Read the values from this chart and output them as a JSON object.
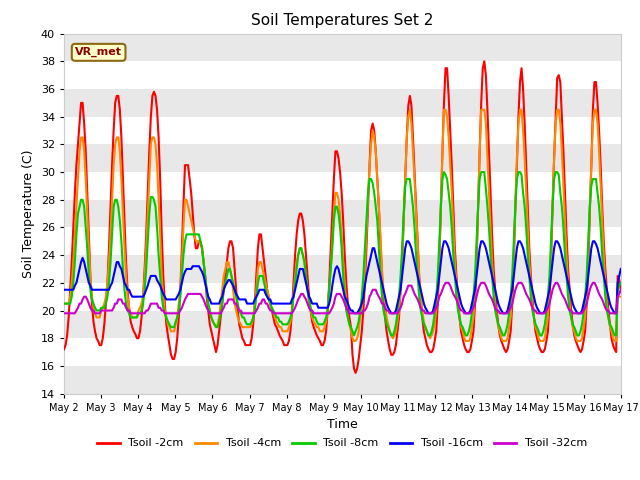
{
  "title": "Soil Temperatures Set 2",
  "xlabel": "Time",
  "ylabel": "Soil Temperature (C)",
  "ylim": [
    14,
    40
  ],
  "yticks": [
    14,
    16,
    18,
    20,
    22,
    24,
    26,
    28,
    30,
    32,
    34,
    36,
    38,
    40
  ],
  "annotation": "VR_met",
  "plot_bg_color": "#ffffff",
  "stripe_color": "#e8e8e8",
  "series_colors": [
    "#ff0000",
    "#ff8800",
    "#00cc00",
    "#0000ff",
    "#cc00cc"
  ],
  "series_labels": [
    "Tsoil -2cm",
    "Tsoil -4cm",
    "Tsoil -8cm",
    "Tsoil -16cm",
    "Tsoil -32cm"
  ],
  "xtick_labels": [
    "May 2",
    "May 3",
    "May 4",
    "May 5",
    "May 6",
    "May 7",
    "May 8",
    "May 9",
    "May 10",
    "May 11",
    "May 12",
    "May 13",
    "May 14",
    "May 15",
    "May 16",
    "May 17"
  ],
  "tsoil_2cm": [
    17.2,
    17.5,
    18.2,
    19.5,
    21.5,
    23.5,
    26.0,
    28.5,
    30.5,
    32.0,
    33.5,
    35.0,
    35.0,
    33.5,
    31.5,
    28.5,
    25.5,
    22.5,
    20.5,
    19.2,
    18.5,
    18.0,
    17.8,
    17.5,
    17.5,
    18.0,
    19.0,
    20.5,
    22.0,
    24.5,
    27.5,
    30.5,
    33.0,
    35.0,
    35.5,
    35.5,
    34.5,
    32.5,
    29.5,
    26.5,
    23.5,
    21.5,
    20.0,
    19.2,
    18.8,
    18.5,
    18.3,
    18.0,
    18.0,
    18.5,
    19.5,
    21.0,
    23.0,
    25.5,
    28.5,
    31.5,
    34.0,
    35.5,
    35.8,
    35.5,
    34.5,
    32.5,
    29.5,
    25.5,
    22.5,
    20.5,
    19.0,
    18.2,
    17.5,
    16.8,
    16.5,
    16.5,
    17.0,
    18.0,
    19.5,
    21.5,
    24.5,
    27.5,
    30.5,
    30.5,
    30.5,
    29.5,
    28.5,
    27.0,
    25.5,
    24.5,
    24.5,
    25.0,
    25.0,
    24.5,
    23.5,
    22.5,
    21.0,
    20.0,
    19.0,
    18.5,
    18.0,
    17.5,
    17.0,
    17.5,
    18.5,
    19.5,
    20.5,
    21.5,
    22.5,
    23.5,
    24.5,
    25.0,
    25.0,
    24.5,
    23.0,
    21.5,
    20.0,
    19.0,
    18.5,
    18.0,
    17.8,
    17.5,
    17.5,
    17.5,
    17.5,
    18.0,
    19.0,
    20.5,
    22.5,
    24.5,
    25.5,
    25.5,
    24.5,
    23.5,
    22.5,
    21.5,
    21.0,
    20.5,
    20.0,
    19.5,
    19.0,
    18.8,
    18.5,
    18.2,
    18.0,
    17.8,
    17.5,
    17.5,
    17.5,
    17.8,
    18.5,
    20.0,
    22.0,
    24.0,
    25.5,
    26.5,
    27.0,
    27.0,
    26.5,
    25.5,
    24.0,
    22.5,
    21.0,
    20.0,
    19.2,
    18.8,
    18.5,
    18.2,
    18.0,
    17.8,
    17.5,
    17.5,
    17.8,
    18.5,
    20.0,
    22.0,
    24.5,
    27.0,
    29.5,
    31.5,
    31.5,
    31.0,
    30.0,
    28.5,
    26.5,
    24.0,
    22.0,
    20.5,
    19.5,
    18.8,
    16.8,
    15.8,
    15.5,
    15.8,
    16.5,
    17.5,
    18.5,
    20.0,
    22.0,
    24.5,
    27.5,
    30.5,
    33.0,
    33.5,
    33.0,
    31.5,
    29.5,
    27.5,
    25.0,
    22.5,
    21.0,
    19.5,
    18.5,
    17.8,
    17.2,
    16.8,
    16.8,
    17.0,
    17.5,
    18.5,
    19.5,
    21.5,
    23.5,
    26.5,
    29.5,
    32.5,
    34.8,
    35.5,
    34.8,
    32.5,
    30.0,
    27.5,
    25.0,
    22.5,
    21.0,
    19.5,
    18.5,
    18.0,
    17.5,
    17.2,
    17.0,
    17.0,
    17.2,
    17.8,
    18.5,
    20.5,
    23.5,
    27.5,
    31.5,
    35.0,
    37.5,
    37.5,
    35.5,
    33.0,
    30.5,
    27.5,
    24.5,
    22.5,
    21.0,
    19.5,
    18.5,
    18.0,
    17.5,
    17.2,
    17.0,
    17.0,
    17.2,
    17.8,
    18.5,
    20.5,
    23.5,
    27.5,
    31.5,
    35.0,
    37.5,
    38.0,
    37.0,
    34.5,
    31.5,
    28.5,
    25.5,
    23.0,
    21.5,
    20.0,
    19.0,
    18.2,
    17.8,
    17.5,
    17.2,
    17.0,
    17.2,
    17.8,
    18.5,
    20.5,
    23.5,
    27.5,
    30.5,
    34.0,
    36.5,
    37.5,
    36.0,
    33.5,
    30.5,
    27.5,
    24.5,
    22.5,
    21.0,
    19.5,
    18.5,
    18.0,
    17.5,
    17.2,
    17.0,
    17.0,
    17.2,
    17.8,
    18.5,
    20.5,
    23.5,
    27.5,
    31.0,
    34.0,
    36.8,
    37.0,
    36.5,
    34.0,
    31.5,
    28.5,
    25.5,
    23.0,
    21.5,
    20.0,
    19.0,
    18.2,
    17.8,
    17.5,
    17.2,
    17.0,
    17.2,
    17.8,
    18.5,
    20.5,
    23.0,
    27.0,
    30.5,
    34.5,
    36.5,
    36.5,
    35.0,
    33.0,
    30.5,
    27.5,
    25.0,
    23.0,
    21.5,
    20.0,
    19.0,
    18.0,
    17.5,
    17.2,
    17.0,
    22.5,
    22.2,
    21.5
  ],
  "tsoil_4cm": [
    20.5,
    20.5,
    20.5,
    20.5,
    21.0,
    22.0,
    23.5,
    25.5,
    27.5,
    29.5,
    31.5,
    32.5,
    32.5,
    31.5,
    29.5,
    27.0,
    24.5,
    22.5,
    21.0,
    20.2,
    19.8,
    19.5,
    19.5,
    19.5,
    20.0,
    20.2,
    20.5,
    21.0,
    22.0,
    23.5,
    25.5,
    28.0,
    30.5,
    32.0,
    32.5,
    32.5,
    31.5,
    29.5,
    27.0,
    24.5,
    22.5,
    21.0,
    20.2,
    19.8,
    19.5,
    19.5,
    19.5,
    19.5,
    20.0,
    20.2,
    20.5,
    21.0,
    22.5,
    24.5,
    27.0,
    29.5,
    32.0,
    32.5,
    32.5,
    32.0,
    30.5,
    28.0,
    25.5,
    22.5,
    21.0,
    20.0,
    19.5,
    19.0,
    18.8,
    18.5,
    18.5,
    18.5,
    19.0,
    19.5,
    20.5,
    21.5,
    23.5,
    26.0,
    28.0,
    28.0,
    27.5,
    27.0,
    26.5,
    26.0,
    25.5,
    25.0,
    25.0,
    25.0,
    24.8,
    24.5,
    23.5,
    22.5,
    21.5,
    20.5,
    20.0,
    19.5,
    19.2,
    19.0,
    18.8,
    19.0,
    19.5,
    20.5,
    21.5,
    22.5,
    23.0,
    23.5,
    23.5,
    23.0,
    22.5,
    21.5,
    20.5,
    20.0,
    19.5,
    19.2,
    19.0,
    18.8,
    18.8,
    18.8,
    18.8,
    18.8,
    18.8,
    19.0,
    19.5,
    20.5,
    21.5,
    23.0,
    23.5,
    23.5,
    23.0,
    22.5,
    22.0,
    21.5,
    21.0,
    20.5,
    20.0,
    19.8,
    19.5,
    19.2,
    19.0,
    18.8,
    18.8,
    18.5,
    18.5,
    18.5,
    18.5,
    18.8,
    19.2,
    20.0,
    21.2,
    22.5,
    23.5,
    24.0,
    24.5,
    24.5,
    24.0,
    23.5,
    22.5,
    21.5,
    20.5,
    20.0,
    19.5,
    19.2,
    19.0,
    18.8,
    18.8,
    18.5,
    18.5,
    18.5,
    18.8,
    19.2,
    20.0,
    21.5,
    23.0,
    25.0,
    27.0,
    28.5,
    28.5,
    28.0,
    27.0,
    25.5,
    23.5,
    22.0,
    20.5,
    19.5,
    19.0,
    18.5,
    18.0,
    17.8,
    17.8,
    18.0,
    18.5,
    19.5,
    20.2,
    21.5,
    23.0,
    25.5,
    28.0,
    30.5,
    32.0,
    33.0,
    32.5,
    31.5,
    29.5,
    27.5,
    25.5,
    23.0,
    21.5,
    20.5,
    19.5,
    19.0,
    18.5,
    18.2,
    18.0,
    18.2,
    18.5,
    19.2,
    20.0,
    21.5,
    23.5,
    26.5,
    29.5,
    32.5,
    34.0,
    34.5,
    33.5,
    31.5,
    29.5,
    27.0,
    25.0,
    22.5,
    21.0,
    20.0,
    19.2,
    18.8,
    18.5,
    18.2,
    18.0,
    18.2,
    18.5,
    19.0,
    20.0,
    21.5,
    24.0,
    27.5,
    31.5,
    34.5,
    34.5,
    34.0,
    32.5,
    30.5,
    28.5,
    26.0,
    23.5,
    22.0,
    20.5,
    19.5,
    18.8,
    18.5,
    18.0,
    17.8,
    17.8,
    17.8,
    18.0,
    18.8,
    19.5,
    21.5,
    24.0,
    27.5,
    31.5,
    34.5,
    34.5,
    34.5,
    33.5,
    31.0,
    28.5,
    26.0,
    23.5,
    22.0,
    20.5,
    19.5,
    18.8,
    18.5,
    18.0,
    17.8,
    17.8,
    17.8,
    18.0,
    18.8,
    19.5,
    21.5,
    24.0,
    27.5,
    31.0,
    33.5,
    34.5,
    34.5,
    33.0,
    31.0,
    28.5,
    26.0,
    23.5,
    22.0,
    20.5,
    19.5,
    18.8,
    18.5,
    18.0,
    17.8,
    17.8,
    17.8,
    18.0,
    18.8,
    19.5,
    21.5,
    24.0,
    27.5,
    31.0,
    33.5,
    34.5,
    34.5,
    33.5,
    31.5,
    29.0,
    26.5,
    24.0,
    22.0,
    20.5,
    19.5,
    18.8,
    18.5,
    18.0,
    17.8,
    17.8,
    17.8,
    18.0,
    18.8,
    19.5,
    21.5,
    24.0,
    27.5,
    30.5,
    33.5,
    34.5,
    34.5,
    33.5,
    31.5,
    29.0,
    26.5,
    24.0,
    22.0,
    20.5,
    19.5,
    18.8,
    18.5,
    18.0,
    17.8,
    17.8,
    21.0,
    21.0,
    21.0
  ],
  "tsoil_8cm": [
    20.5,
    20.5,
    20.5,
    20.5,
    20.5,
    21.0,
    22.0,
    23.5,
    25.5,
    27.0,
    27.5,
    28.0,
    28.0,
    27.5,
    26.0,
    24.5,
    22.5,
    21.5,
    20.8,
    20.5,
    20.2,
    20.0,
    20.0,
    20.0,
    20.2,
    20.2,
    20.2,
    20.5,
    21.0,
    22.0,
    23.5,
    25.5,
    27.5,
    28.0,
    28.0,
    27.5,
    26.5,
    25.0,
    23.0,
    21.5,
    20.5,
    20.0,
    19.8,
    19.5,
    19.5,
    19.5,
    19.5,
    19.5,
    19.8,
    19.8,
    20.0,
    20.5,
    21.5,
    23.0,
    25.0,
    27.0,
    28.2,
    28.2,
    28.0,
    27.5,
    26.0,
    24.0,
    22.5,
    21.0,
    20.2,
    19.8,
    19.5,
    19.2,
    19.0,
    18.8,
    18.8,
    18.8,
    19.2,
    19.5,
    20.0,
    21.0,
    22.5,
    24.0,
    25.0,
    25.5,
    25.5,
    25.5,
    25.5,
    25.5,
    25.5,
    25.5,
    25.5,
    25.5,
    25.0,
    24.5,
    23.5,
    22.5,
    21.5,
    20.5,
    20.0,
    19.5,
    19.2,
    19.0,
    18.8,
    18.8,
    19.2,
    19.8,
    20.5,
    21.5,
    22.0,
    22.5,
    23.0,
    23.0,
    22.5,
    22.0,
    21.5,
    21.0,
    20.5,
    20.0,
    19.8,
    19.5,
    19.5,
    19.2,
    19.0,
    19.0,
    19.0,
    19.2,
    19.5,
    20.0,
    21.0,
    22.0,
    22.5,
    22.5,
    22.5,
    22.0,
    21.5,
    21.0,
    20.8,
    20.5,
    20.2,
    20.0,
    19.8,
    19.5,
    19.5,
    19.2,
    19.2,
    19.0,
    19.0,
    19.0,
    19.0,
    19.2,
    19.5,
    20.0,
    21.0,
    22.0,
    23.0,
    24.0,
    24.5,
    24.5,
    24.0,
    23.5,
    22.5,
    21.5,
    20.8,
    20.2,
    19.8,
    19.5,
    19.5,
    19.2,
    19.0,
    19.0,
    19.0,
    19.0,
    19.2,
    19.5,
    20.0,
    21.5,
    23.0,
    24.5,
    26.5,
    27.5,
    27.5,
    27.0,
    26.0,
    24.5,
    22.5,
    21.0,
    20.0,
    19.5,
    19.0,
    18.8,
    18.5,
    18.2,
    18.5,
    18.8,
    19.2,
    20.0,
    21.0,
    22.5,
    24.5,
    26.5,
    28.5,
    29.5,
    29.5,
    29.2,
    28.5,
    27.5,
    26.5,
    24.5,
    22.5,
    21.0,
    20.0,
    19.5,
    19.0,
    18.8,
    18.5,
    18.2,
    18.2,
    18.5,
    19.0,
    19.8,
    21.0,
    22.5,
    24.5,
    27.0,
    29.0,
    29.5,
    29.5,
    29.5,
    28.5,
    27.5,
    26.0,
    24.0,
    22.5,
    21.0,
    20.0,
    19.5,
    19.0,
    18.8,
    18.5,
    18.2,
    18.2,
    18.5,
    19.0,
    19.8,
    21.0,
    22.5,
    25.0,
    27.5,
    29.5,
    30.0,
    29.8,
    29.5,
    28.5,
    27.5,
    26.0,
    24.0,
    22.5,
    21.0,
    20.0,
    19.5,
    19.0,
    18.8,
    18.5,
    18.2,
    18.2,
    18.5,
    19.0,
    19.8,
    21.0,
    22.5,
    25.0,
    27.5,
    29.5,
    30.0,
    30.0,
    30.0,
    28.8,
    27.5,
    26.0,
    24.0,
    22.5,
    21.0,
    20.0,
    19.5,
    19.0,
    18.8,
    18.5,
    18.2,
    18.2,
    18.5,
    19.0,
    19.8,
    21.0,
    22.5,
    25.0,
    27.5,
    29.5,
    30.0,
    30.0,
    29.8,
    28.5,
    27.5,
    26.0,
    24.0,
    22.5,
    21.0,
    20.0,
    19.5,
    19.0,
    18.8,
    18.5,
    18.2,
    18.2,
    18.5,
    19.0,
    19.8,
    21.0,
    22.5,
    25.0,
    27.5,
    29.5,
    30.0,
    30.0,
    29.8,
    28.5,
    27.5,
    26.0,
    24.0,
    22.5,
    21.0,
    20.0,
    19.5,
    19.0,
    18.8,
    18.5,
    18.2,
    18.2,
    18.5,
    19.0,
    19.8,
    21.0,
    22.5,
    25.0,
    27.5,
    29.0,
    29.5,
    29.5,
    29.5,
    28.5,
    27.5,
    26.0,
    24.0,
    22.5,
    21.0,
    20.0,
    19.5,
    19.0,
    18.8,
    18.5,
    18.2,
    18.2,
    21.5,
    21.8,
    22.0
  ],
  "tsoil_16cm": [
    21.5,
    21.5,
    21.5,
    21.5,
    21.5,
    21.5,
    21.5,
    21.8,
    22.0,
    22.5,
    23.0,
    23.5,
    23.8,
    23.5,
    23.0,
    22.5,
    22.0,
    21.8,
    21.5,
    21.5,
    21.5,
    21.5,
    21.5,
    21.5,
    21.5,
    21.5,
    21.5,
    21.5,
    21.5,
    21.5,
    21.8,
    22.0,
    22.5,
    23.0,
    23.5,
    23.5,
    23.2,
    23.0,
    22.5,
    22.0,
    21.8,
    21.5,
    21.5,
    21.2,
    21.0,
    21.0,
    21.0,
    21.0,
    21.0,
    21.0,
    21.0,
    21.0,
    21.2,
    21.5,
    21.8,
    22.2,
    22.5,
    22.5,
    22.5,
    22.5,
    22.2,
    22.0,
    21.8,
    21.5,
    21.2,
    21.0,
    20.8,
    20.8,
    20.8,
    20.8,
    20.8,
    20.8,
    20.8,
    21.0,
    21.2,
    21.5,
    22.0,
    22.5,
    22.8,
    23.0,
    23.0,
    23.0,
    23.0,
    23.2,
    23.2,
    23.2,
    23.2,
    23.2,
    23.0,
    22.8,
    22.5,
    22.0,
    21.5,
    21.0,
    20.8,
    20.5,
    20.5,
    20.5,
    20.5,
    20.5,
    20.5,
    20.8,
    21.0,
    21.5,
    21.8,
    22.0,
    22.2,
    22.2,
    22.0,
    21.8,
    21.5,
    21.2,
    21.0,
    20.8,
    20.8,
    20.8,
    20.8,
    20.8,
    20.5,
    20.5,
    20.5,
    20.5,
    20.5,
    20.8,
    21.0,
    21.2,
    21.5,
    21.5,
    21.5,
    21.5,
    21.2,
    21.0,
    20.8,
    20.8,
    20.5,
    20.5,
    20.5,
    20.5,
    20.5,
    20.5,
    20.5,
    20.5,
    20.5,
    20.5,
    20.5,
    20.5,
    20.5,
    20.8,
    21.0,
    21.5,
    22.0,
    22.5,
    23.0,
    23.0,
    23.0,
    22.5,
    22.0,
    21.5,
    21.0,
    20.8,
    20.5,
    20.5,
    20.5,
    20.5,
    20.2,
    20.2,
    20.2,
    20.2,
    20.2,
    20.2,
    20.2,
    20.5,
    21.0,
    21.8,
    22.5,
    23.0,
    23.2,
    23.0,
    22.5,
    22.0,
    21.5,
    21.0,
    20.8,
    20.5,
    20.2,
    20.0,
    20.0,
    19.8,
    19.8,
    19.8,
    20.0,
    20.2,
    20.5,
    21.0,
    21.8,
    22.5,
    23.0,
    23.5,
    24.0,
    24.5,
    24.5,
    24.0,
    23.5,
    23.0,
    22.5,
    22.0,
    21.5,
    21.0,
    20.5,
    20.2,
    20.0,
    19.8,
    19.8,
    19.8,
    20.0,
    20.5,
    21.0,
    21.5,
    22.5,
    23.5,
    24.5,
    25.0,
    25.0,
    24.8,
    24.5,
    24.0,
    23.5,
    23.0,
    22.5,
    22.0,
    21.5,
    21.0,
    20.5,
    20.2,
    20.0,
    19.8,
    19.8,
    19.8,
    20.0,
    20.5,
    21.0,
    21.5,
    22.5,
    23.5,
    24.5,
    25.0,
    25.0,
    24.8,
    24.5,
    24.0,
    23.5,
    23.0,
    22.5,
    22.0,
    21.5,
    21.0,
    20.5,
    20.2,
    20.0,
    19.8,
    19.8,
    19.8,
    20.0,
    20.5,
    21.0,
    21.5,
    22.5,
    23.5,
    24.5,
    25.0,
    25.0,
    24.8,
    24.5,
    24.0,
    23.5,
    23.0,
    22.5,
    22.0,
    21.5,
    21.0,
    20.5,
    20.2,
    20.0,
    19.8,
    19.8,
    19.8,
    20.0,
    20.5,
    21.0,
    21.5,
    22.5,
    23.5,
    24.5,
    25.0,
    25.0,
    24.8,
    24.5,
    24.0,
    23.5,
    23.0,
    22.5,
    22.0,
    21.5,
    21.0,
    20.5,
    20.2,
    20.0,
    19.8,
    19.8,
    19.8,
    20.0,
    20.5,
    21.0,
    21.5,
    22.5,
    23.5,
    24.5,
    25.0,
    25.0,
    24.8,
    24.5,
    24.0,
    23.5,
    23.0,
    22.5,
    22.0,
    21.5,
    21.0,
    20.5,
    20.2,
    20.0,
    19.8,
    19.8,
    19.8,
    20.0,
    20.5,
    21.0,
    21.5,
    22.5,
    23.5,
    24.5,
    25.0,
    25.0,
    24.8,
    24.5,
    24.0,
    23.5,
    23.0,
    22.5,
    22.0,
    21.5,
    21.0,
    20.5,
    20.2,
    20.0,
    19.8,
    19.8,
    22.0,
    22.5,
    23.0
  ],
  "tsoil_32cm": [
    19.8,
    19.8,
    19.8,
    19.8,
    19.8,
    19.8,
    19.8,
    19.8,
    20.0,
    20.2,
    20.5,
    20.5,
    20.8,
    21.0,
    21.0,
    20.8,
    20.5,
    20.2,
    20.0,
    20.0,
    19.8,
    19.8,
    19.8,
    19.8,
    20.0,
    20.0,
    20.0,
    20.0,
    20.0,
    20.0,
    20.0,
    20.0,
    20.2,
    20.5,
    20.5,
    20.8,
    20.8,
    20.8,
    20.5,
    20.5,
    20.2,
    20.0,
    20.0,
    19.8,
    19.8,
    19.8,
    19.8,
    19.8,
    19.8,
    19.8,
    19.8,
    19.8,
    19.8,
    20.0,
    20.0,
    20.2,
    20.5,
    20.5,
    20.5,
    20.5,
    20.5,
    20.2,
    20.2,
    20.0,
    20.0,
    19.8,
    19.8,
    19.8,
    19.8,
    19.8,
    19.8,
    19.8,
    19.8,
    19.8,
    19.8,
    20.0,
    20.2,
    20.5,
    20.8,
    21.0,
    21.2,
    21.2,
    21.2,
    21.2,
    21.2,
    21.2,
    21.2,
    21.2,
    21.2,
    21.0,
    20.8,
    20.5,
    20.2,
    20.0,
    19.8,
    19.8,
    19.8,
    19.8,
    19.8,
    19.8,
    19.8,
    19.8,
    20.0,
    20.2,
    20.5,
    20.5,
    20.8,
    20.8,
    20.8,
    20.8,
    20.5,
    20.5,
    20.2,
    20.0,
    20.0,
    19.8,
    19.8,
    19.8,
    19.8,
    19.8,
    19.8,
    19.8,
    19.8,
    19.8,
    20.0,
    20.2,
    20.5,
    20.5,
    20.8,
    20.8,
    20.5,
    20.5,
    20.2,
    20.0,
    20.0,
    19.8,
    19.8,
    19.8,
    19.8,
    19.8,
    19.8,
    19.8,
    19.8,
    19.8,
    19.8,
    19.8,
    19.8,
    19.8,
    20.0,
    20.2,
    20.5,
    20.8,
    21.0,
    21.2,
    21.2,
    21.0,
    20.8,
    20.5,
    20.2,
    20.0,
    20.0,
    19.8,
    19.8,
    19.8,
    19.8,
    19.8,
    19.8,
    19.8,
    19.8,
    19.8,
    19.8,
    19.8,
    20.0,
    20.2,
    20.5,
    21.0,
    21.2,
    21.2,
    21.2,
    21.0,
    20.8,
    20.5,
    20.2,
    20.0,
    19.8,
    19.8,
    19.8,
    19.8,
    19.8,
    19.8,
    19.8,
    19.8,
    19.8,
    20.0,
    20.0,
    20.2,
    20.5,
    21.0,
    21.2,
    21.5,
    21.5,
    21.5,
    21.2,
    21.0,
    20.8,
    20.5,
    20.5,
    20.2,
    20.0,
    20.0,
    19.8,
    19.8,
    19.8,
    19.8,
    19.8,
    19.8,
    20.0,
    20.2,
    20.5,
    21.0,
    21.2,
    21.5,
    21.8,
    21.8,
    21.8,
    21.5,
    21.2,
    21.0,
    20.8,
    20.5,
    20.2,
    20.0,
    20.0,
    19.8,
    19.8,
    19.8,
    19.8,
    19.8,
    19.8,
    20.0,
    20.2,
    20.5,
    21.0,
    21.2,
    21.5,
    21.8,
    22.0,
    22.0,
    22.0,
    21.8,
    21.5,
    21.2,
    21.0,
    20.8,
    20.5,
    20.2,
    20.0,
    20.0,
    19.8,
    19.8,
    19.8,
    19.8,
    19.8,
    20.0,
    20.2,
    20.5,
    21.0,
    21.5,
    21.8,
    22.0,
    22.0,
    22.0,
    21.8,
    21.5,
    21.2,
    21.0,
    20.8,
    20.5,
    20.2,
    20.0,
    20.0,
    19.8,
    19.8,
    19.8,
    19.8,
    19.8,
    19.8,
    20.0,
    20.2,
    20.5,
    21.0,
    21.5,
    21.8,
    22.0,
    22.0,
    22.0,
    21.8,
    21.5,
    21.2,
    21.0,
    20.8,
    20.5,
    20.2,
    20.0,
    20.0,
    19.8,
    19.8,
    19.8,
    19.8,
    19.8,
    19.8,
    20.0,
    20.2,
    20.5,
    21.0,
    21.5,
    21.8,
    22.0,
    22.0,
    21.8,
    21.5,
    21.2,
    21.0,
    20.8,
    20.5,
    20.2,
    20.0,
    20.0,
    19.8,
    19.8,
    19.8,
    19.8,
    19.8,
    19.8,
    19.8,
    20.0,
    20.2,
    20.5,
    21.0,
    21.5,
    21.8,
    22.0,
    22.0,
    21.8,
    21.5,
    21.2,
    21.0,
    20.8,
    20.5,
    20.2,
    20.0,
    20.0,
    19.8,
    19.8,
    19.8,
    19.8,
    19.8,
    21.0,
    21.2,
    21.5
  ]
}
